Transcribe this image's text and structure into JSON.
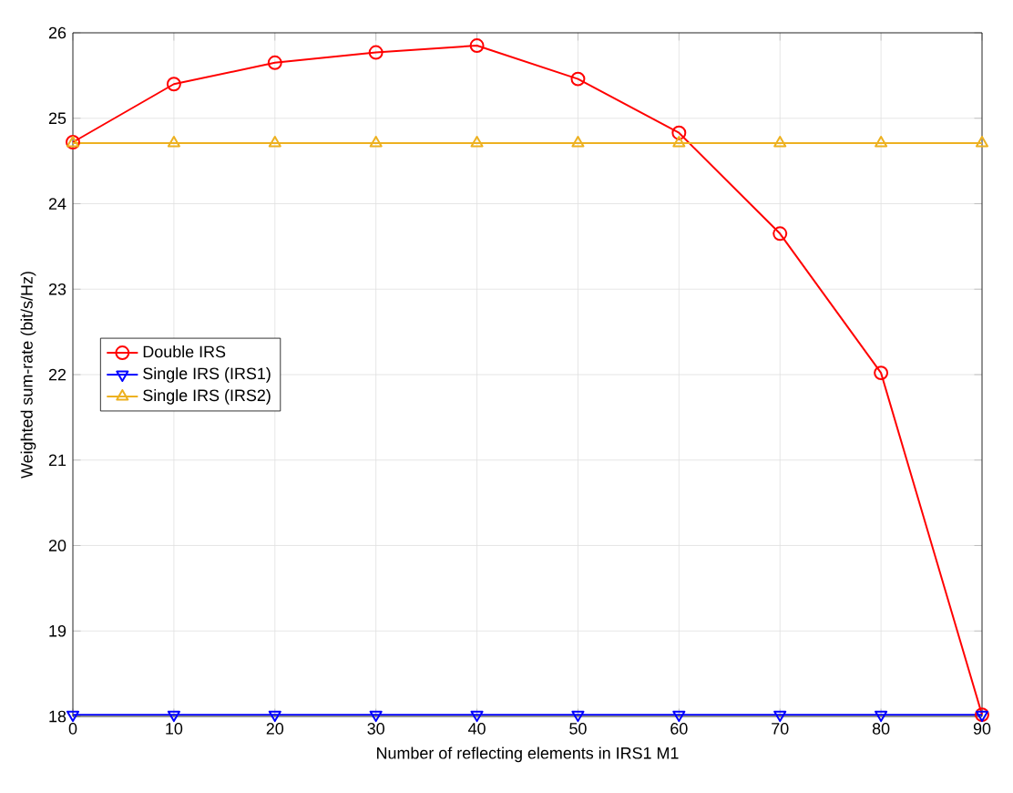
{
  "chart_data": {
    "type": "line",
    "xlabel": "Number of reflecting elements in IRS1  M1",
    "ylabel": "Weighted sum-rate (bit/s/Hz)",
    "x": [
      0,
      10,
      20,
      30,
      40,
      50,
      60,
      70,
      80,
      90
    ],
    "series": [
      {
        "name": "Double IRS",
        "color": "#ff0000",
        "marker": "circle",
        "values": [
          24.72,
          25.4,
          25.65,
          25.77,
          25.85,
          25.46,
          24.83,
          23.65,
          22.02,
          18.02
        ]
      },
      {
        "name": "Single IRS (IRS1)",
        "color": "#0000ff",
        "marker": "triangle-down",
        "values": [
          18.02,
          18.02,
          18.02,
          18.02,
          18.02,
          18.02,
          18.02,
          18.02,
          18.02,
          18.02
        ]
      },
      {
        "name": "Single IRS (IRS2)",
        "color": "#edb120",
        "marker": "triangle",
        "values": [
          24.71,
          24.71,
          24.71,
          24.71,
          24.71,
          24.71,
          24.71,
          24.71,
          24.71,
          24.71
        ]
      }
    ],
    "xlim": [
      0,
      90
    ],
    "ylim": [
      18,
      26
    ],
    "xticks": [
      0,
      10,
      20,
      30,
      40,
      50,
      60,
      70,
      80,
      90
    ],
    "yticks": [
      18,
      19,
      20,
      21,
      22,
      23,
      24,
      25,
      26
    ],
    "grid": true,
    "legend": "left",
    "line_style": "solid"
  }
}
